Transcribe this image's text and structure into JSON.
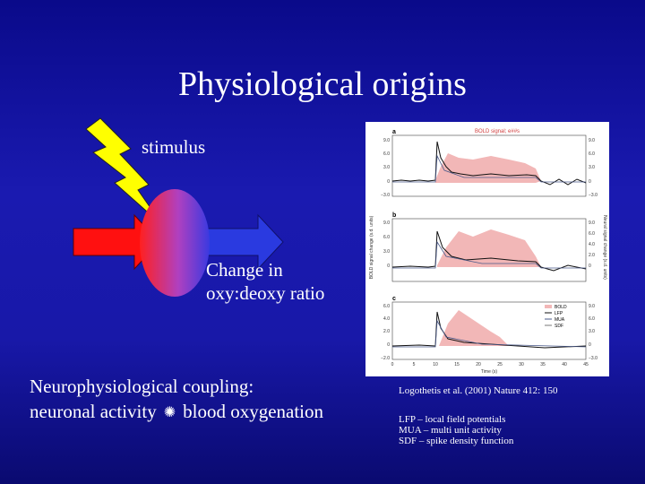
{
  "slide": {
    "title": "Physiological origins",
    "stimulus_label": "stimulus",
    "change_label_line1": "Change in",
    "change_label_line2": "oxy:deoxy ratio",
    "coupling_line1": "Neurophysiological coupling:",
    "coupling_line2_a": "neuronal activity",
    "coupling_line2_b": "blood oxygenation",
    "reference": "Logothetis et al. (2001) Nature 412: 150",
    "abbrev_lfp": "LFP – local field potentials",
    "abbrev_mua": "MUA – multi unit activity",
    "abbrev_sdf": "SDF – spike density function"
  },
  "figure": {
    "header": "BOLD signal; e##s",
    "panels": [
      "a",
      "b",
      "c"
    ],
    "left_ticks_a": [
      "9.0",
      "6.0",
      "3.0",
      "0",
      "−3.0"
    ],
    "left_ticks_b": [
      "9.0",
      "6.0",
      "3.0",
      "0"
    ],
    "left_ticks_c": [
      "6.0",
      "4.0",
      "2.0",
      "0",
      "−2.0"
    ],
    "right_ticks_a": [
      "9.0",
      "6.0",
      "3.0",
      "0",
      "−3.0"
    ],
    "right_ticks_b": [
      "9.0",
      "6.0",
      "4.0",
      "2.0",
      "0"
    ],
    "right_ticks_c": [
      "9.0",
      "6.0",
      "3.0",
      "0",
      "−3.0"
    ],
    "x_ticks": [
      "0",
      "5",
      "10",
      "15",
      "20",
      "25",
      "30",
      "35",
      "40",
      "45"
    ],
    "x_label": "Time (s)",
    "left_axis_label": "BOLD signal change (s.d. units)",
    "right_axis_label": "Neural signal change (s.d. units)",
    "legend": [
      "BOLD",
      "LFP",
      "MUA",
      "SDF"
    ]
  },
  "colors": {
    "bold": "#f2b7b7",
    "lfp": "#111111",
    "mua": "#4a5a8a",
    "sdf": "#7a7a7a",
    "bolt": "#ffff00",
    "red_arrow": "#ff1010",
    "blue_arrow": "#2a3ae0"
  }
}
